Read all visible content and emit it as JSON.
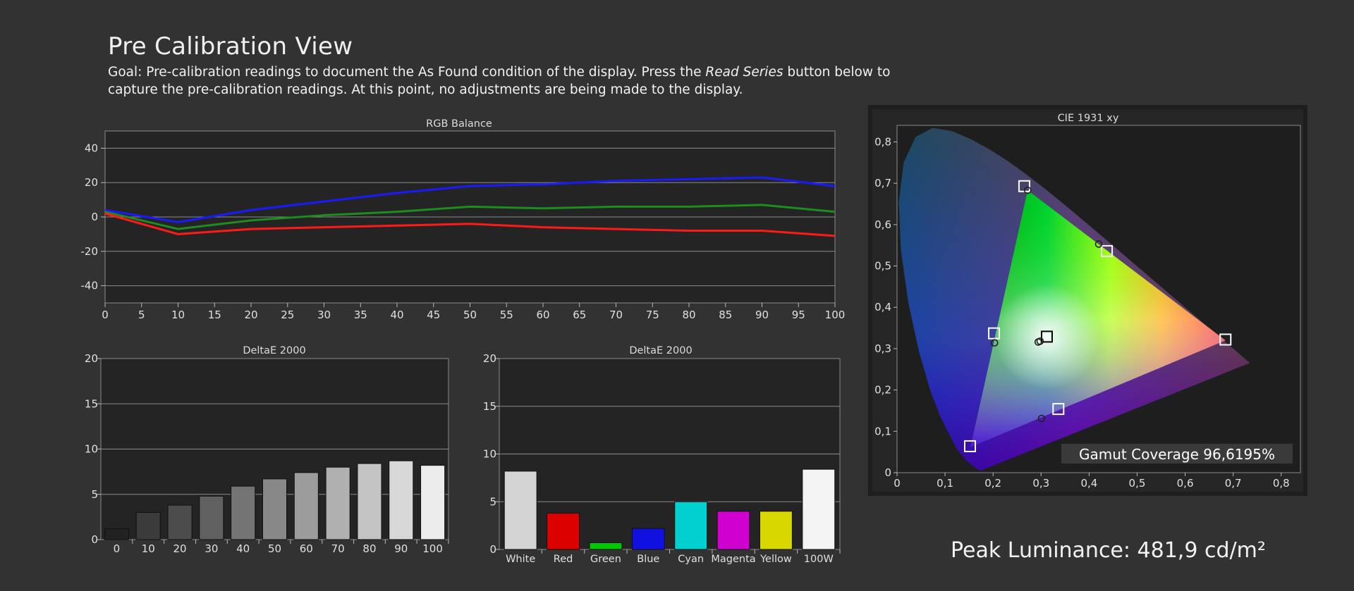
{
  "page": {
    "title": "Pre Calibration View",
    "goal_prefix": "Goal: Pre-calibration readings to document the As Found condition of the display. Press the ",
    "goal_emphasis": "Read Series",
    "goal_suffix": " button below to capture the pre-calibration readings. At this point, no adjustments are being made to the display.",
    "peak_luminance": "Peak Luminance: 481,9 cd/m²"
  },
  "chart_data": [
    {
      "type": "line",
      "title": "RGB Balance",
      "x": [
        0,
        10,
        20,
        30,
        40,
        50,
        60,
        70,
        80,
        90,
        100
      ],
      "xticks": [
        "0",
        "5",
        "10",
        "15",
        "20",
        "25",
        "30",
        "35",
        "40",
        "45",
        "50",
        "55",
        "60",
        "65",
        "70",
        "75",
        "80",
        "85",
        "90",
        "95",
        "100"
      ],
      "xlim": [
        0,
        100
      ],
      "ylim": [
        -50,
        50
      ],
      "yticks": [
        "40",
        "20",
        "0",
        "-20",
        "-40"
      ],
      "grid": true,
      "series": [
        {
          "color": "#1a1aff",
          "values": [
            4,
            -3,
            4,
            9,
            14,
            18,
            19,
            21,
            22,
            23,
            18
          ]
        },
        {
          "color": "#1e8c1e",
          "values": [
            3,
            -7,
            -2,
            1,
            3,
            6,
            5,
            6,
            6,
            7,
            3
          ]
        },
        {
          "color": "#ff1a1a",
          "values": [
            2,
            -10,
            -7,
            -6,
            -5,
            -4,
            -6,
            -7,
            -8,
            -8,
            -11
          ]
        }
      ]
    },
    {
      "type": "bar",
      "title": "DeltaE 2000",
      "categories": [
        "0",
        "10",
        "20",
        "30",
        "40",
        "50",
        "60",
        "70",
        "80",
        "90",
        "100"
      ],
      "values": [
        1.2,
        3.0,
        3.8,
        4.8,
        5.9,
        6.7,
        7.4,
        8.0,
        8.4,
        8.7,
        8.2
      ],
      "ylim": [
        0,
        20
      ],
      "yticks": [
        "20",
        "15",
        "10",
        "5",
        "0"
      ],
      "bar_colors": [
        "#222222",
        "#3b3b3b",
        "#4c4c4c",
        "#606060",
        "#747474",
        "#888888",
        "#9c9c9c",
        "#b0b0b0",
        "#c4c4c4",
        "#d8d8d8",
        "#ececec"
      ]
    },
    {
      "type": "bar",
      "title": "DeltaE 2000",
      "categories": [
        "White",
        "Red",
        "Green",
        "Blue",
        "Cyan",
        "Magenta",
        "Yellow",
        "100W"
      ],
      "values": [
        8.2,
        3.8,
        0.7,
        2.2,
        5.0,
        4.0,
        4.0,
        8.4
      ],
      "ylim": [
        0,
        20
      ],
      "yticks": [
        "20",
        "15",
        "10",
        "5",
        "0"
      ],
      "bar_colors": [
        "#d4d4d4",
        "#dd0000",
        "#00c800",
        "#1010e0",
        "#00d0d0",
        "#d000d0",
        "#d8d800",
        "#f4f4f4"
      ]
    },
    {
      "type": "scatter",
      "title": "CIE 1931 xy",
      "xlim": [
        0,
        0.84
      ],
      "ylim": [
        0,
        0.84
      ],
      "xticks": [
        "0",
        "0,1",
        "0,2",
        "0,3",
        "0,4",
        "0,5",
        "0,6",
        "0,7",
        "0,8"
      ],
      "yticks": [
        "0,8",
        "0,7",
        "0,6",
        "0,5",
        "0,4",
        "0,3",
        "0,2",
        "0,1",
        "0"
      ],
      "targets": [
        {
          "x": 0.265,
          "y": 0.693
        },
        {
          "x": 0.437,
          "y": 0.536
        },
        {
          "x": 0.684,
          "y": 0.322
        },
        {
          "x": 0.202,
          "y": 0.337
        },
        {
          "x": 0.312,
          "y": 0.329
        },
        {
          "x": 0.336,
          "y": 0.154
        },
        {
          "x": 0.152,
          "y": 0.064
        }
      ],
      "measured": [
        {
          "x": 0.272,
          "y": 0.683
        },
        {
          "x": 0.42,
          "y": 0.553
        },
        {
          "x": 0.203,
          "y": 0.314
        },
        {
          "x": 0.294,
          "y": 0.316
        },
        {
          "x": 0.298,
          "y": 0.318
        },
        {
          "x": 0.301,
          "y": 0.131
        }
      ],
      "triangle": [
        {
          "x": 0.272,
          "y": 0.683
        },
        {
          "x": 0.684,
          "y": 0.32
        },
        {
          "x": 0.153,
          "y": 0.062
        }
      ],
      "gamut_coverage": "Gamut Coverage 96,6195%"
    }
  ]
}
